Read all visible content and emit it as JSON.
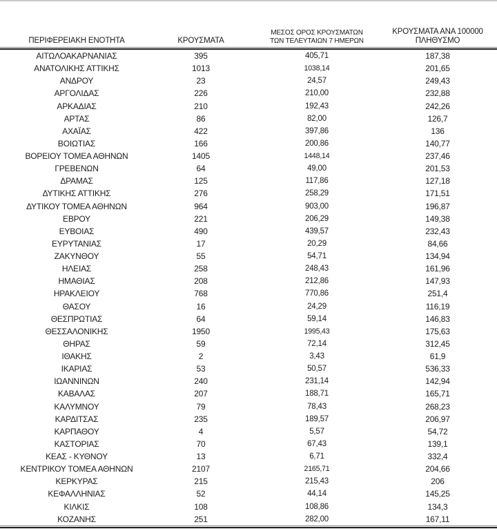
{
  "table": {
    "header": {
      "col1": "ΠΕΡΙΦΕΡΕΙΑΚΗ ΕΝΟΤΗΤΑ",
      "col2": "ΚΡΟΥΣΜΑΤΑ",
      "col3_line1": "ΜΕΣΟΣ ΟΡΟΣ ΚΡΟΥΣΜΑΤΩΝ",
      "col3_line2": "ΤΩΝ ΤΕΛΕΥΤΑΙΩΝ 7 ΗΜΕΡΩΝ",
      "col4_line1": "ΚΡΟΥΣΜΑΤΑ ΑΝΑ 100000",
      "col4_line2": "ΠΛΗΘΥΣΜΟ"
    },
    "rows": [
      [
        "ΑΙΤΩΛΟΑΚΑΡΝΑΝΙΑΣ",
        "395",
        "405,71",
        "187,38"
      ],
      [
        "ΑΝΑΤΟΛΙΚΗΣ ΑΤΤΙΚΗΣ",
        "1013",
        "1038,14",
        "201,65"
      ],
      [
        "ΑΝΔΡΟΥ",
        "23",
        "24,57",
        "249,43"
      ],
      [
        "ΑΡΓΟΛΙΔΑΣ",
        "226",
        "210,00",
        "232,88"
      ],
      [
        "ΑΡΚΑΔΙΑΣ",
        "210",
        "192,43",
        "242,26"
      ],
      [
        "ΑΡΤΑΣ",
        "86",
        "82,00",
        "126,7"
      ],
      [
        "ΑΧΑΪΑΣ",
        "422",
        "397,86",
        "136"
      ],
      [
        "ΒΟΙΩΤΙΑΣ",
        "166",
        "200,86",
        "140,77"
      ],
      [
        "ΒΟΡΕΙΟΥ ΤΟΜΕΑ ΑΘΗΝΩΝ",
        "1405",
        "1448,14",
        "237,46"
      ],
      [
        "ΓΡΕΒΕΝΩΝ",
        "64",
        "49,00",
        "201,53"
      ],
      [
        "ΔΡΑΜΑΣ",
        "125",
        "117,86",
        "127,18"
      ],
      [
        "ΔΥΤΙΚΗΣ ΑΤΤΙΚΗΣ",
        "276",
        "258,29",
        "171,51"
      ],
      [
        "ΔΥΤΙΚΟΥ ΤΟΜΕΑ ΑΘΗΝΩΝ",
        "964",
        "903,00",
        "196,87"
      ],
      [
        "ΕΒΡΟΥ",
        "221",
        "206,29",
        "149,38"
      ],
      [
        "ΕΥΒΟΙΑΣ",
        "490",
        "439,57",
        "232,43"
      ],
      [
        "ΕΥΡΥΤΑΝΙΑΣ",
        "17",
        "20,29",
        "84,66"
      ],
      [
        "ΖΑΚΥΝΘΟΥ",
        "55",
        "54,71",
        "134,94"
      ],
      [
        "ΗΛΕΙΑΣ",
        "258",
        "248,43",
        "161,96"
      ],
      [
        "ΗΜΑΘΙΑΣ",
        "208",
        "212,86",
        "147,93"
      ],
      [
        "ΗΡΑΚΛΕΙΟΥ",
        "768",
        "770,86",
        "251,4"
      ],
      [
        "ΘΑΣΟΥ",
        "16",
        "24,29",
        "116,19"
      ],
      [
        "ΘΕΣΠΡΩΤΙΑΣ",
        "64",
        "59,14",
        "146,83"
      ],
      [
        "ΘΕΣΣΑΛΟΝΙΚΗΣ",
        "1950",
        "1995,43",
        "175,63"
      ],
      [
        "ΘΗΡΑΣ",
        "59",
        "72,14",
        "312,45"
      ],
      [
        "ΙΘΑΚΗΣ",
        "2",
        "3,43",
        "61,9"
      ],
      [
        "ΙΚΑΡΙΑΣ",
        "53",
        "50,57",
        "536,33"
      ],
      [
        "ΙΩΑΝΝΙΝΩΝ",
        "240",
        "231,14",
        "142,94"
      ],
      [
        "ΚΑΒΑΛΑΣ",
        "207",
        "188,71",
        "165,71"
      ],
      [
        "ΚΑΛΥΜΝΟΥ",
        "79",
        "78,43",
        "268,23"
      ],
      [
        "ΚΑΡΔΙΤΣΑΣ",
        "235",
        "189,57",
        "206,97"
      ],
      [
        "ΚΑΡΠΑΘΟΥ",
        "4",
        "5,57",
        "54,72"
      ],
      [
        "ΚΑΣΤΟΡΙΑΣ",
        "70",
        "67,43",
        "139,1"
      ],
      [
        "ΚΕΑΣ - ΚΥΘΝΟΥ",
        "13",
        "6,71",
        "332,4"
      ],
      [
        "ΚΕΝΤΡΙΚΟΥ ΤΟΜΕΑ ΑΘΗΝΩΝ",
        "2107",
        "2165,71",
        "204,66"
      ],
      [
        "ΚΕΡΚΥΡΑΣ",
        "215",
        "215,43",
        "206"
      ],
      [
        "ΚΕΦΑΛΛΗΝΙΑΣ",
        "52",
        "44,14",
        "145,25"
      ],
      [
        "ΚΙΛΚΙΣ",
        "108",
        "108,86",
        "134,3"
      ],
      [
        "ΚΟΖΑΝΗΣ",
        "251",
        "282,00",
        "167,11"
      ]
    ]
  },
  "colors": {
    "text": "#1c1c1c",
    "rule_dark": "#1c1c1c",
    "rule_light": "#7f7f7f",
    "top_edge": "#c9c9c9"
  }
}
